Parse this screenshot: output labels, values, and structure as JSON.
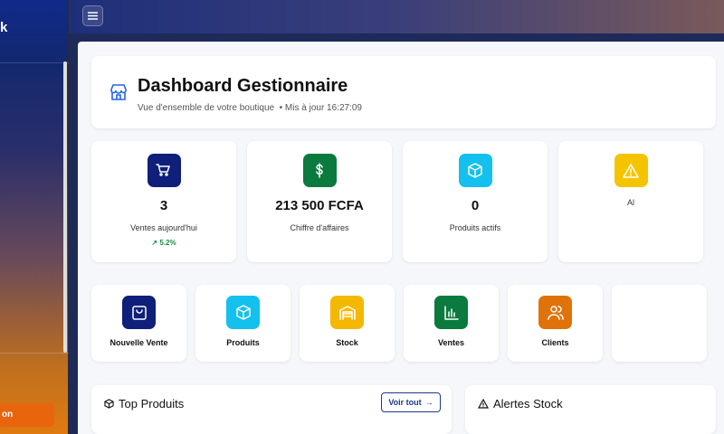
{
  "sidebar": {
    "brand_fragment": "k",
    "logout_fragment": "on"
  },
  "header": {
    "title": "Dashboard Gestionnaire",
    "subtitle": "Vue d'ensemble de votre boutique",
    "updated": "• Mis à jour 16:27:09"
  },
  "stats": [
    {
      "value": "3",
      "label": "Ventes aujourd'hui",
      "trend": "5.2%",
      "icon": "cart-icon",
      "color": "#0f1f7a"
    },
    {
      "value": "213 500 FCFA",
      "label": "Chiffre d'affaires",
      "icon": "dollar-icon",
      "color": "#0a7a3e"
    },
    {
      "value": "0",
      "label": "Produits actifs",
      "icon": "box-icon",
      "color": "#14c0ee"
    },
    {
      "value": "",
      "label": "Al",
      "icon": "alert-icon",
      "color": "#f5c400"
    }
  ],
  "actions": [
    {
      "label": "Nouvelle Vente",
      "icon": "bag-icon",
      "color": "#0f1f7a"
    },
    {
      "label": "Produits",
      "icon": "box-icon",
      "color": "#14c0ee"
    },
    {
      "label": "Stock",
      "icon": "warehouse-icon",
      "color": "#f5b800"
    },
    {
      "label": "Ventes",
      "icon": "bar-chart-icon",
      "color": "#0a7a3e"
    },
    {
      "label": "Clients",
      "icon": "users-icon",
      "color": "#e0720a"
    }
  ],
  "panels": {
    "top_products": "Top Produits",
    "see_all": "Voir tout",
    "stock_alerts": "Alertes Stock"
  }
}
